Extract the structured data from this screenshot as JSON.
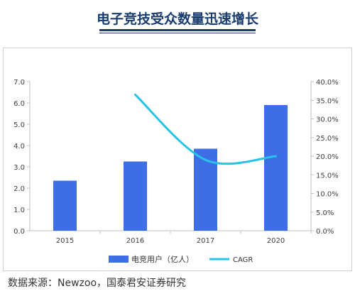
{
  "header": {
    "title": "电子竞技受众数量迅速增长"
  },
  "chart_data": {
    "type": "bar",
    "categories": [
      "2015",
      "2016",
      "2017",
      "2020"
    ],
    "series": [
      {
        "name": "电竞用户（亿人）",
        "type": "bar",
        "axis": "left",
        "values": [
          2.35,
          3.25,
          3.85,
          5.9
        ]
      },
      {
        "name": "CAGR",
        "type": "line",
        "axis": "right",
        "values": [
          null,
          0.365,
          0.19,
          0.2
        ]
      }
    ],
    "left_axis": {
      "ylim": [
        0,
        7
      ],
      "ticks": [
        "0.0",
        "1.0",
        "2.0",
        "3.0",
        "4.0",
        "5.0",
        "6.0",
        "7.0"
      ]
    },
    "right_axis": {
      "ylim": [
        0,
        0.4
      ],
      "ticks": [
        "0.0%",
        "5.0%",
        "10.0%",
        "15.0%",
        "20.0%",
        "25.0%",
        "30.0%",
        "35.0%",
        "40.0%"
      ]
    },
    "legend_position": "bottom",
    "grid": false
  },
  "colors": {
    "bar": "#3d6ee8",
    "line": "#27c3e6",
    "title": "#1a3c6e"
  },
  "legend": {
    "bar_label": "电竞用户（亿人）",
    "line_label": "CAGR"
  },
  "footer": {
    "source": "数据来源：Newzoo，国泰君安证券研究"
  }
}
